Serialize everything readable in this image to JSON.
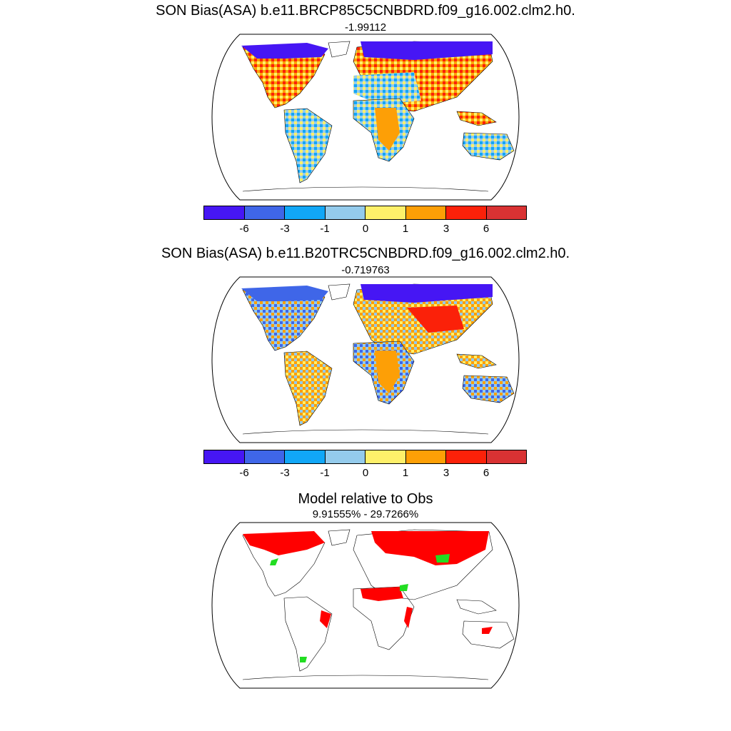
{
  "panels": [
    {
      "title": "SON Bias(ASA) b.e11.BRCP85C5CNBDRD.f09_g16.002.clm2.h0.",
      "subtitle": "-1.99112"
    },
    {
      "title": "SON Bias(ASA) b.e11.B20TRC5CNBDRD.f09_g16.002.clm2.h0.",
      "subtitle": "-0.719763"
    },
    {
      "title": "Model relative to Obs",
      "subtitle": "9.91555% - 29.7266%"
    }
  ],
  "colorbar": {
    "colors": [
      "#4616f4",
      "#3f66e8",
      "#11a7f7",
      "#94cbec",
      "#fef06a",
      "#fd9f06",
      "#fb2109",
      "#d93233"
    ],
    "tick_labels": [
      "-6",
      "-3",
      "-1",
      "0",
      "1",
      "3",
      "6"
    ]
  },
  "colors": {
    "ocean": "#ffffff",
    "coast": "#000000",
    "exceed": "#ff0000",
    "below": "#22dd22"
  }
}
